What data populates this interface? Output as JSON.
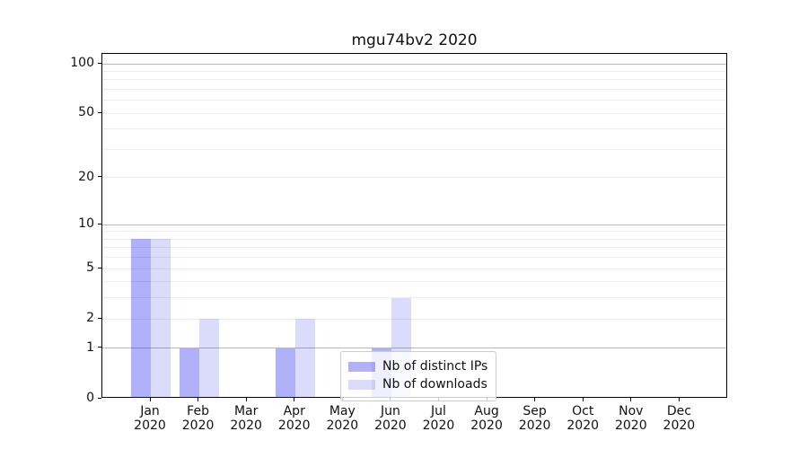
{
  "chart_data": {
    "type": "bar",
    "title": "mgu74bv2 2020",
    "scale": "log1p",
    "categories": [
      "Jan",
      "Feb",
      "Mar",
      "Apr",
      "May",
      "Jun",
      "Jul",
      "Aug",
      "Sep",
      "Oct",
      "Nov",
      "Dec"
    ],
    "category_year": "2020",
    "series": [
      {
        "name": "Nb of distinct IPs",
        "color": "rgba(32,32,238,0.35)",
        "values": [
          8,
          1,
          0,
          1,
          0,
          1,
          0,
          0,
          0,
          0,
          0,
          0
        ]
      },
      {
        "name": "Nb of downloads",
        "color": "rgba(32,32,238,0.16)",
        "values": [
          8,
          2,
          0,
          2,
          0,
          3,
          0,
          0,
          0,
          0,
          0,
          0
        ]
      }
    ],
    "yticks": [
      0,
      1,
      2,
      5,
      10,
      20,
      50,
      100
    ],
    "major_gridlines": [
      1,
      10,
      100
    ],
    "minor_gridlines": [
      2,
      3,
      4,
      5,
      6,
      7,
      8,
      9,
      20,
      30,
      40,
      50,
      60,
      70,
      80,
      90
    ],
    "ylim": [
      0,
      115
    ],
    "grid": true,
    "legend_position": "lower center"
  },
  "colors": {
    "major_grid": "#b9b9b9",
    "minor_grid": "#ebebeb",
    "axis": "#000000",
    "text": "#111111"
  }
}
